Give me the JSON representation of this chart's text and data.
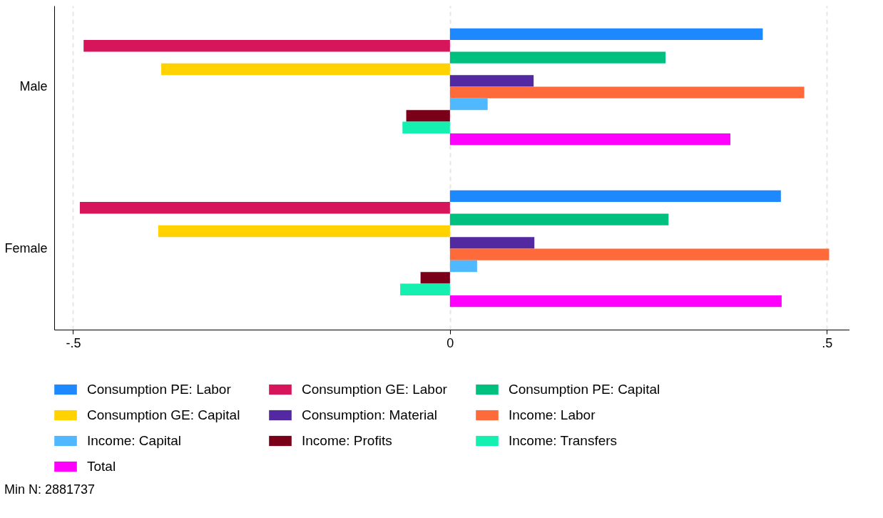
{
  "chart_data": {
    "type": "bar",
    "orientation": "horizontal",
    "categories": [
      "Male",
      "Female"
    ],
    "series": [
      {
        "name": "Consumption PE: Labor",
        "color": "#1e88ff",
        "values": [
          0.415,
          0.439
        ]
      },
      {
        "name": "Consumption GE: Labor",
        "color": "#d6155a",
        "values": [
          -0.486,
          -0.491
        ]
      },
      {
        "name": "Consumption PE: Capital",
        "color": "#00c07f",
        "values": [
          0.286,
          0.29
        ]
      },
      {
        "name": "Consumption GE: Capital",
        "color": "#ffd200",
        "values": [
          -0.383,
          -0.387
        ]
      },
      {
        "name": "Consumption: Material",
        "color": "#5229a0",
        "values": [
          0.111,
          0.112
        ]
      },
      {
        "name": "Income: Labor",
        "color": "#ff6a3a",
        "values": [
          0.47,
          0.503
        ]
      },
      {
        "name": "Income: Capital",
        "color": "#4fb8ff",
        "values": [
          0.05,
          0.036
        ]
      },
      {
        "name": "Income: Profits",
        "color": "#7a0019",
        "values": [
          -0.058,
          -0.039
        ]
      },
      {
        "name": "Income: Transfers",
        "color": "#13f0b0",
        "values": [
          -0.063,
          -0.066
        ]
      },
      {
        "name": "Total",
        "color": "#ff00ff",
        "values": [
          0.372,
          0.44
        ]
      }
    ],
    "xlim": [
      -0.525,
      0.53
    ],
    "xticks": [
      {
        "value": -0.5,
        "label": "-.5"
      },
      {
        "value": 0,
        "label": "0"
      },
      {
        "value": 0.5,
        "label": ".5"
      }
    ],
    "grid": "x",
    "legend": "bottom",
    "annotations": [
      "Min N: 2881737"
    ]
  }
}
